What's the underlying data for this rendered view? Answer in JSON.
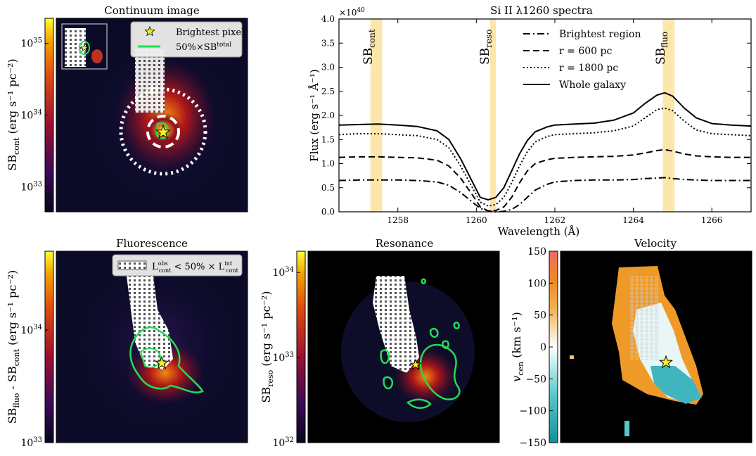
{
  "panels": {
    "continuum": {
      "title": "Continuum image",
      "cbar_label": "SB",
      "cbar_label_sub": "cont",
      "cbar_unit": "(erg s⁻¹ pc⁻²)",
      "cbar_ticks": [
        {
          "label": "10",
          "exp": "33",
          "v": 33
        },
        {
          "label": "10",
          "exp": "34",
          "v": 34
        },
        {
          "label": "10",
          "exp": "35",
          "v": 35
        }
      ],
      "cbar_range": [
        32.65,
        35.35
      ],
      "legend": [
        {
          "marker": "star",
          "label": "Brightest pixel"
        },
        {
          "marker": "green-line",
          "label": "50%×SB",
          "sup": "total"
        }
      ]
    },
    "fluorescence": {
      "title": "Fluorescence",
      "cbar_label": "SB",
      "cbar_label_sub": "fluo",
      "cbar_label_mid": " - SB",
      "cbar_label_sub2": "cont",
      "cbar_unit": "(erg s⁻¹ pc⁻²)",
      "cbar_ticks": [
        {
          "label": "10",
          "exp": "33",
          "v": 33
        },
        {
          "label": "10",
          "exp": "34",
          "v": 34
        }
      ],
      "cbar_range": [
        33.0,
        34.7
      ],
      "legend": [
        {
          "marker": "hatch",
          "label": "L",
          "sup": "obs",
          "sub": "cont",
          "rest": " < 50% × L",
          "sup2": "int",
          "sub2": "cont"
        }
      ]
    },
    "resonance": {
      "title": "Resonance",
      "cbar_label": "SB",
      "cbar_label_sub": "reso",
      "cbar_unit": "(erg s⁻¹ pc⁻²)",
      "cbar_ticks": [
        {
          "label": "10",
          "exp": "32",
          "v": 32
        },
        {
          "label": "10",
          "exp": "33",
          "v": 33
        },
        {
          "label": "10",
          "exp": "34",
          "v": 34
        }
      ],
      "cbar_range": [
        32.0,
        34.25
      ]
    },
    "velocity": {
      "title": "Velocity",
      "cbar_label": "v",
      "cbar_label_sub": "cen",
      "cbar_unit": "(km s⁻¹)",
      "cbar_ticks": [
        -150,
        -100,
        -50,
        0,
        50,
        100,
        150
      ],
      "cbar_range": [
        -150,
        150
      ]
    }
  },
  "chart_data": {
    "type": "line",
    "title": "Si II λ1260 spectra",
    "xlabel": "Wavelength (Å)",
    "ylabel": "Flux (erg s⁻¹ Å⁻¹)",
    "y_multiplier": "×10",
    "y_multiplier_exp": "40",
    "xlim": [
      1256.5,
      1267.0
    ],
    "ylim": [
      0.0,
      4.0
    ],
    "xticks": [
      1258,
      1260,
      1262,
      1264,
      1266
    ],
    "yticks": [
      "0.0",
      "0.5",
      "1.0",
      "1.5",
      "2.0",
      "2.5",
      "3.0",
      "3.5",
      "4.0"
    ],
    "bands": [
      {
        "label": "SB",
        "sub": "cont",
        "x": [
          1257.3,
          1257.6
        ]
      },
      {
        "label": "SB",
        "sub": "reso",
        "x": [
          1260.35,
          1260.5
        ]
      },
      {
        "label": "SB",
        "sub": "fluo",
        "x": [
          1264.75,
          1265.05
        ]
      }
    ],
    "x": [
      1256.5,
      1257.0,
      1257.5,
      1258.0,
      1258.5,
      1259.0,
      1259.3,
      1259.6,
      1259.9,
      1260.1,
      1260.3,
      1260.5,
      1260.7,
      1260.9,
      1261.1,
      1261.3,
      1261.5,
      1261.8,
      1262.0,
      1262.5,
      1263.0,
      1263.5,
      1264.0,
      1264.3,
      1264.6,
      1264.8,
      1265.0,
      1265.3,
      1265.6,
      1266.0,
      1266.5,
      1267.0
    ],
    "series": [
      {
        "name": "Brightest region",
        "style": "dashdot",
        "values": [
          0.65,
          0.66,
          0.66,
          0.66,
          0.65,
          0.62,
          0.55,
          0.4,
          0.2,
          0.07,
          0.02,
          0.0,
          0.01,
          0.05,
          0.15,
          0.3,
          0.45,
          0.57,
          0.62,
          0.65,
          0.66,
          0.66,
          0.67,
          0.69,
          0.7,
          0.71,
          0.69,
          0.67,
          0.66,
          0.65,
          0.65,
          0.65
        ]
      },
      {
        "name": "r = 600 pc",
        "style": "dashed",
        "values": [
          1.13,
          1.14,
          1.14,
          1.13,
          1.12,
          1.07,
          0.95,
          0.7,
          0.35,
          0.1,
          0.02,
          0.03,
          0.1,
          0.3,
          0.6,
          0.85,
          1.0,
          1.08,
          1.11,
          1.13,
          1.14,
          1.15,
          1.18,
          1.22,
          1.27,
          1.29,
          1.26,
          1.2,
          1.16,
          1.14,
          1.13,
          1.13
        ]
      },
      {
        "name": "r = 1800 pc",
        "style": "dotted",
        "values": [
          1.6,
          1.62,
          1.62,
          1.6,
          1.58,
          1.5,
          1.33,
          0.95,
          0.5,
          0.2,
          0.12,
          0.15,
          0.3,
          0.6,
          0.95,
          1.25,
          1.45,
          1.56,
          1.6,
          1.62,
          1.64,
          1.68,
          1.78,
          1.95,
          2.12,
          2.15,
          2.1,
          1.88,
          1.7,
          1.62,
          1.6,
          1.58
        ]
      },
      {
        "name": "Whole galaxy",
        "style": "solid",
        "values": [
          1.8,
          1.81,
          1.82,
          1.8,
          1.77,
          1.68,
          1.5,
          1.1,
          0.62,
          0.3,
          0.25,
          0.3,
          0.5,
          0.85,
          1.2,
          1.48,
          1.66,
          1.76,
          1.8,
          1.82,
          1.84,
          1.9,
          2.05,
          2.25,
          2.42,
          2.47,
          2.4,
          2.15,
          1.95,
          1.83,
          1.8,
          1.78
        ]
      }
    ]
  }
}
